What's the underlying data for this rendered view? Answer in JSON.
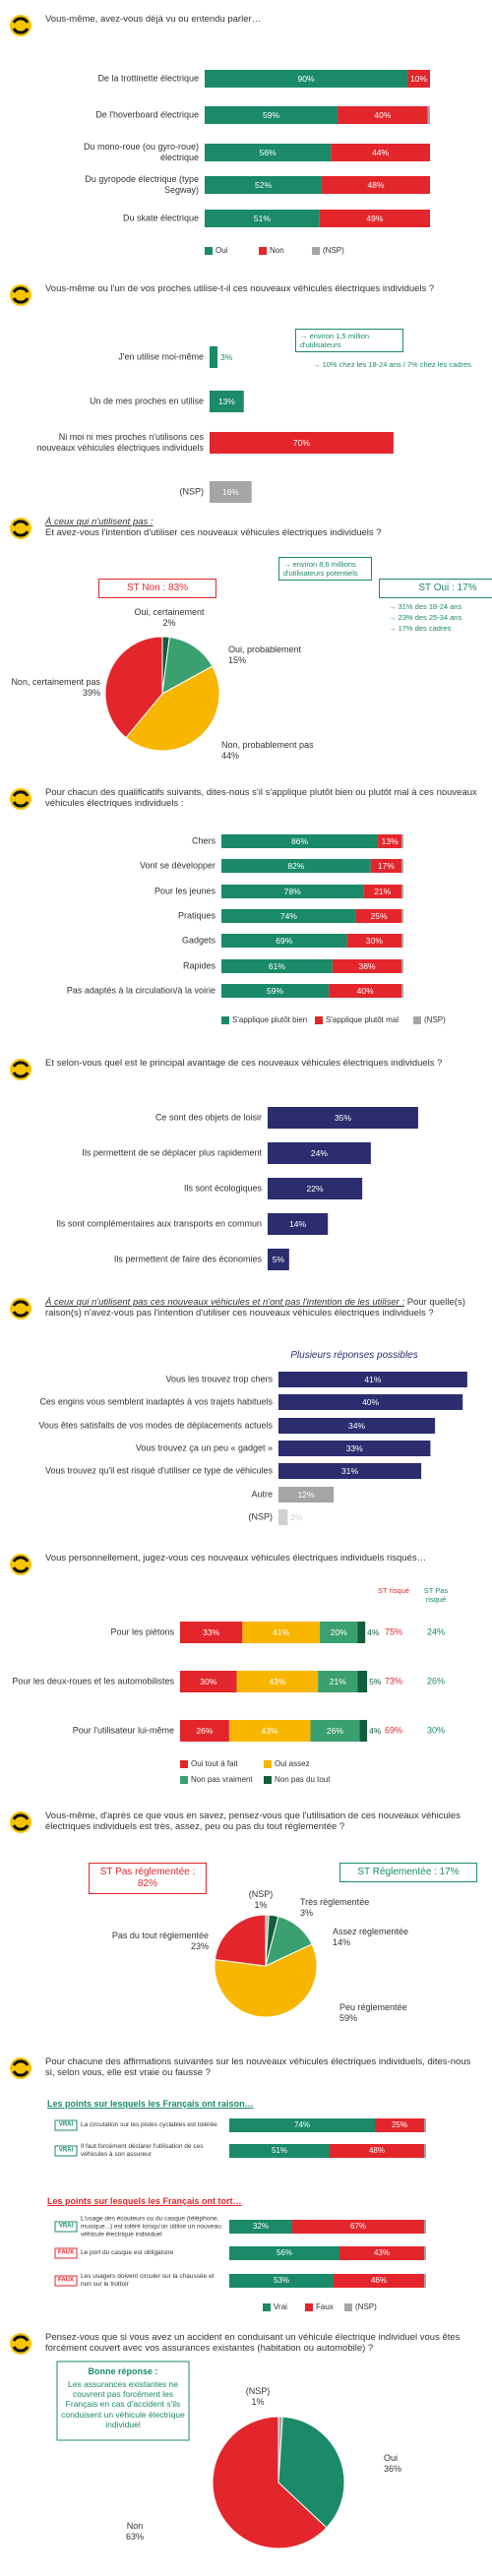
{
  "chart_data": [
    {
      "type": "stacked_bar",
      "title": "Vous-même, avez-vous déjà vu ou entendu parler…",
      "categories": [
        "De la trottinette électrique",
        "De l'hoverboard électrique",
        "Du mono-roue (ou gyro-roue) électrique",
        "Du gyropode électrique (type Segway)",
        "Du skate électrique"
      ],
      "series": [
        {
          "name": "Oui",
          "color": "#1a8a68",
          "values": [
            90,
            59,
            56,
            52,
            51
          ],
          "value_labels": [
            "90%",
            "59%",
            "56%",
            "52%",
            "51%"
          ]
        },
        {
          "name": "Non",
          "color": "#e3262b",
          "values": [
            10,
            40,
            44,
            48,
            49
          ],
          "value_labels": [
            "10%",
            "40%",
            "44%",
            "48%",
            "49%"
          ]
        },
        {
          "name": "(NSP)",
          "color": "#a5a5a5",
          "values": [
            0,
            1,
            0,
            0,
            0
          ]
        }
      ]
    },
    {
      "type": "bar",
      "title": "Vous-même ou l'un de vos proches utilise-t-il ces nouveaux véhicules électriques individuels ?",
      "categories": [
        "J'en utilise moi-même",
        "Un de mes proches en utilise",
        "Ni moi ni mes proches n'utilisons ces nouveaux véhicules électriques individuels",
        "(NSP)"
      ],
      "values": [
        3,
        13,
        70,
        16
      ],
      "value_labels": [
        "3%",
        "13%",
        "70%",
        "16%"
      ],
      "colors": [
        "#1a8a68",
        "#1a8a68",
        "#e3262b",
        "#a5a5a5"
      ],
      "annotations": [
        "→ environ 1,5 million d'utilisateurs",
        "→ 10% chez les 18-24 ans / 7% chez les cadres"
      ]
    },
    {
      "type": "pie",
      "subtitle": "À ceux qui n'utilisent pas :",
      "title": "Et avez-vous l'intention d'utiliser ces nouveaux véhicules électriques individuels ?",
      "categories": [
        "Oui, certainement",
        "Oui, probablement",
        "Non, probablement pas",
        "Non, certainement pas"
      ],
      "values": [
        2,
        15,
        44,
        39
      ],
      "value_labels": [
        "2%",
        "15%",
        "44%",
        "39%"
      ],
      "colors": [
        "#145c3e",
        "#3aa06f",
        "#f8b600",
        "#e3262b"
      ],
      "totals": [
        "ST Non : 83%",
        "ST Oui : 17%"
      ],
      "annotations": [
        "→ environ 8,6 millions d'utilisateurs potentiels",
        "→ 31% des 18-24 ans",
        "→ 23% des 25-34 ans",
        "→ 17% des cadres"
      ]
    },
    {
      "type": "stacked_bar",
      "title": "Pour chacun des qualificatifs suivants, dites-nous s'il s'applique plutôt bien ou plutôt mal à ces nouveaux véhicules électriques individuels :",
      "categories": [
        "Chers",
        "Vont se développer",
        "Pour les jeunes",
        "Pratiques",
        "Gadgets",
        "Rapides",
        "Pas adaptés à la circulation/à la voirie"
      ],
      "series": [
        {
          "name": "S'applique plutôt bien",
          "color": "#1a8a68",
          "values": [
            86,
            82,
            78,
            74,
            69,
            61,
            59
          ],
          "value_labels": [
            "86%",
            "82%",
            "78%",
            "74%",
            "69%",
            "61%",
            "59%"
          ]
        },
        {
          "name": "S'applique plutôt mal",
          "color": "#e3262b",
          "values": [
            13,
            17,
            21,
            25,
            30,
            38,
            40
          ],
          "value_labels": [
            "13%",
            "17%",
            "21%",
            "25%",
            "30%",
            "38%",
            "40%"
          ]
        },
        {
          "name": "(NSP)",
          "color": "#a5a5a5",
          "values": [
            1,
            1,
            1,
            1,
            1,
            1,
            1
          ]
        }
      ]
    },
    {
      "type": "bar",
      "title": "Et selon-vous quel est le principal avantage de ces nouveaux véhicules électriques individuels ?",
      "categories": [
        "Ce sont des objets de loisir",
        "Ils permettent de se déplacer plus rapidement",
        "Ils sont écologiques",
        "Ils sont complémentaires aux transports en commun",
        "Ils permettent de faire des économies"
      ],
      "values": [
        35,
        24,
        22,
        14,
        5
      ],
      "value_labels": [
        "35%",
        "24%",
        "22%",
        "14%",
        "5%"
      ],
      "colors": [
        "#2b2d6e",
        "#2b2d6e",
        "#2b2d6e",
        "#2b2d6e",
        "#2b2d6e"
      ]
    },
    {
      "type": "bar",
      "subtitle": "À ceux qui n'utilisent pas ces nouveaux véhicules et n'ont pas l'intention de les utiliser :",
      "title": "Pour quelle(s) raison(s) n'avez-vous pas l'intention d'utiliser ces nouveaux véhicules électriques individuels ?",
      "note": "Plusieurs réponses possibles",
      "categories": [
        "Vous les trouvez trop chers",
        "Ces engins vous semblent inadaptés à vos trajets habituels",
        "Vous êtes satisfaits de vos modes de déplacements actuels",
        "Vous trouvez ça un peu « gadget »",
        "Vous trouvez qu'il est risqué d'utiliser ce type de véhicules",
        "Autre",
        "(NSP)"
      ],
      "values": [
        41,
        40,
        34,
        33,
        31,
        12,
        2
      ],
      "value_labels": [
        "41%",
        "40%",
        "34%",
        "33%",
        "31%",
        "12%",
        "2%"
      ],
      "colors": [
        "#2b2d6e",
        "#2b2d6e",
        "#2b2d6e",
        "#2b2d6e",
        "#2b2d6e",
        "#a5a5a5",
        "#d0d0d0"
      ]
    },
    {
      "type": "stacked_bar",
      "title": "Vous personnellement, jugez-vous ces nouveaux véhicules électriques individuels risqués…",
      "categories": [
        "Pour les piétons",
        "Pour les deux-roues et les automobilistes",
        "Pour l'utilisateur lui-même"
      ],
      "series": [
        {
          "name": "Oui tout à fait",
          "color": "#e3262b",
          "values": [
            33,
            30,
            26
          ],
          "value_labels": [
            "33%",
            "30%",
            "26%"
          ]
        },
        {
          "name": "Oui assez",
          "color": "#f8b600",
          "values": [
            41,
            43,
            43
          ],
          "value_labels": [
            "41%",
            "43%",
            "43%"
          ]
        },
        {
          "name": "Non pas vraiment",
          "color": "#3aa06f",
          "values": [
            20,
            21,
            26
          ],
          "value_labels": [
            "20%",
            "21%",
            "26%"
          ]
        },
        {
          "name": "Non pas du tout",
          "color": "#145c3e",
          "values": [
            4,
            5,
            4
          ],
          "value_labels": [
            "4%",
            "5%",
            "4%"
          ]
        }
      ],
      "st": [
        {
          "name": "ST risqué",
          "color": "#e3262b",
          "values": [
            75,
            73,
            69
          ],
          "value_labels": [
            "75%",
            "73%",
            "69%"
          ]
        },
        {
          "name": "ST Pas risqué",
          "color": "#1a8a68",
          "values": [
            24,
            26,
            30
          ],
          "value_labels": [
            "24%",
            "26%",
            "30%"
          ]
        }
      ]
    },
    {
      "type": "pie",
      "title": "Vous-même, d'après ce que vous en savez, pensez-vous que l'utilisation de ces nouveaux véhicules électriques individuels est très, assez, peu ou pas du tout réglementée ?",
      "categories": [
        "(NSP)",
        "Très réglementée",
        "Assez réglementée",
        "Peu réglementée",
        "Pas du tout réglementée"
      ],
      "values": [
        1,
        3,
        14,
        59,
        23
      ],
      "value_labels": [
        "1%",
        "3%",
        "14%",
        "59%",
        "23%"
      ],
      "colors": [
        "#a5a5a5",
        "#145c3e",
        "#3aa06f",
        "#f8b600",
        "#e3262b"
      ],
      "totals": [
        "ST Pas réglementée : 82%",
        "ST Réglementée : 17%"
      ]
    },
    {
      "type": "stacked_bar",
      "title": "Pour chacune des affirmations suivantes sur les nouveaux véhicules électriques individuels, dites-nous si, selon vous, elle est vraie ou fausse ?",
      "groups": [
        "Les points sur lesquels les Français ont raison…",
        "Les points sur lesquels les Français ont tort…"
      ],
      "tags": [
        "VRAI",
        "VRAI",
        "VRAI",
        "FAUX",
        "FAUX"
      ],
      "categories": [
        "La circulation sur les pistes cyclables est tolérée",
        "Il faut forcément déclarer l'utilisation de ces véhicules à son assureur",
        "L'usage des écouteurs ou du casque (téléphone, musique...) est toléré lorsqu'on utilise un nouveau véhicule électrique individuel",
        "Le port du casque est obligatoire",
        "Les usagers doivent circuler sur la chaussée et non sur le trottoir"
      ],
      "series": [
        {
          "name": "Vrai",
          "color": "#1a8a68",
          "values": [
            74,
            51,
            32,
            56,
            53
          ],
          "value_labels": [
            "74%",
            "51%",
            "32%",
            "56%",
            "53%"
          ]
        },
        {
          "name": "Faux",
          "color": "#e3262b",
          "values": [
            25,
            48,
            67,
            43,
            46
          ],
          "value_labels": [
            "25%",
            "48%",
            "67%",
            "43%",
            "46%"
          ]
        },
        {
          "name": "(NSP)",
          "color": "#a5a5a5",
          "values": [
            1,
            1,
            1,
            1,
            1
          ]
        }
      ]
    },
    {
      "type": "pie",
      "title": "Pensez-vous que si vous avez un accident en conduisant un véhicule électrique individuel vous êtes forcément couvert avec vos assurances existantes (habitation ou automobile) ?",
      "categories": [
        "(NSP)",
        "Oui",
        "Non"
      ],
      "values": [
        1,
        36,
        63
      ],
      "value_labels": [
        "1%",
        "36%",
        "63%"
      ],
      "colors": [
        "#a5a5a5",
        "#1a8a68",
        "#e3262b"
      ],
      "annotations": [
        "Bonne réponse :",
        "Les assurances existantes ne couvrent pas forcément les Français en cas d'accident s'ils conduisent un véhicule électrique individuel"
      ]
    }
  ]
}
